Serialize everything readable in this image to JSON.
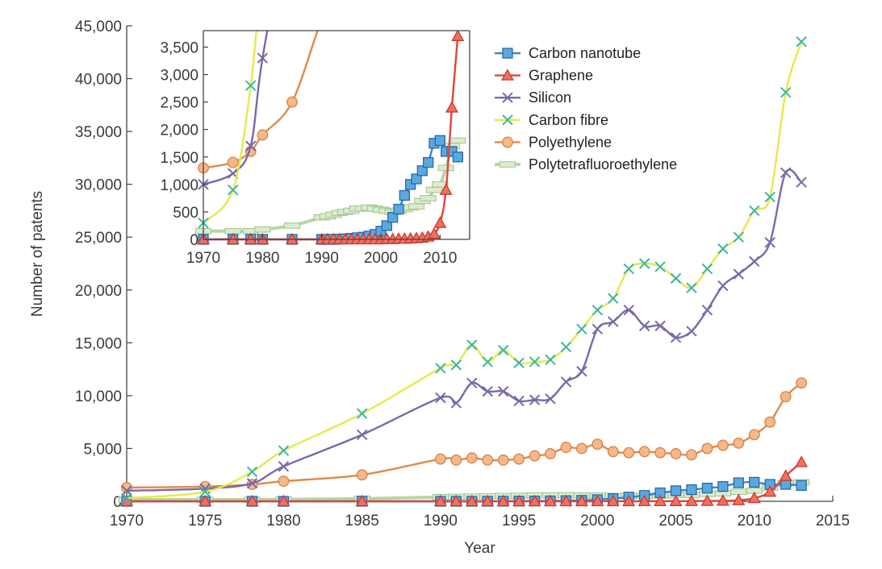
{
  "chart_data": [
    {
      "type": "line",
      "xlabel": "Year",
      "ylabel": "Number of patents",
      "xlim": [
        1970,
        2015
      ],
      "ylim": [
        0,
        45000
      ],
      "xticks": [
        1970,
        1975,
        1980,
        1985,
        1990,
        1995,
        2000,
        2005,
        2010,
        2015
      ],
      "yticks": [
        0,
        5000,
        10000,
        15000,
        20000,
        25000,
        30000,
        35000,
        40000,
        45000
      ],
      "xtick_labels": [
        "1970",
        "1975",
        "1980",
        "1985",
        "1990",
        "1995",
        "2000",
        "2005",
        "2010",
        "2015"
      ],
      "ytick_labels": [
        "0",
        "5,000",
        "10,000",
        "15,000",
        "20,000",
        "25,000",
        "30,000",
        "35,000",
        "40,000",
        "45,000"
      ],
      "legend_position": "top-right",
      "series": [
        {
          "name": "Carbon nanotube",
          "color": "#3d85c6",
          "marker": "square",
          "x": [
            1970,
            1975,
            1978,
            1980,
            1985,
            1990,
            1991,
            1992,
            1993,
            1994,
            1995,
            1996,
            1997,
            1998,
            1999,
            2000,
            2001,
            2002,
            2003,
            2004,
            2005,
            2006,
            2007,
            2008,
            2009,
            2010,
            2011,
            2012,
            2013
          ],
          "y": [
            0,
            0,
            0,
            0,
            0,
            0,
            0,
            0,
            5,
            10,
            20,
            30,
            40,
            60,
            90,
            150,
            250,
            400,
            550,
            800,
            1000,
            1100,
            1250,
            1400,
            1750,
            1800,
            1600,
            1600,
            1500
          ]
        },
        {
          "name": "Graphene",
          "color": "#e0453b",
          "marker": "triangle",
          "x": [
            1970,
            1975,
            1978,
            1980,
            1985,
            1990,
            1991,
            1992,
            1993,
            1994,
            1995,
            1996,
            1997,
            1998,
            1999,
            2000,
            2001,
            2002,
            2003,
            2004,
            2005,
            2006,
            2007,
            2008,
            2009,
            2010,
            2011,
            2012,
            2013
          ],
          "y": [
            0,
            0,
            0,
            0,
            0,
            0,
            0,
            0,
            0,
            0,
            0,
            0,
            0,
            0,
            0,
            0,
            5,
            5,
            10,
            10,
            15,
            20,
            30,
            50,
            100,
            300,
            900,
            2400,
            3700
          ]
        },
        {
          "name": "Silicon",
          "color": "#7b68a8",
          "marker": "x",
          "x": [
            1970,
            1975,
            1978,
            1980,
            1985,
            1990,
            1991,
            1992,
            1993,
            1994,
            1995,
            1996,
            1997,
            1998,
            1999,
            2000,
            2001,
            2002,
            2003,
            2004,
            2005,
            2006,
            2007,
            2008,
            2009,
            2010,
            2011,
            2012,
            2013
          ],
          "y": [
            1000,
            1200,
            1700,
            3300,
            6300,
            9800,
            9300,
            11200,
            10400,
            10400,
            9500,
            9600,
            9700,
            11300,
            12300,
            16300,
            17000,
            18100,
            16600,
            16600,
            15500,
            16100,
            18100,
            20400,
            21500,
            22700,
            24500,
            31100,
            30200
          ]
        },
        {
          "name": "Carbon fibre",
          "color": "#e8e84a",
          "marker_color": "#3ab7a5",
          "marker": "x",
          "x": [
            1970,
            1975,
            1978,
            1980,
            1985,
            1990,
            1991,
            1992,
            1993,
            1994,
            1995,
            1996,
            1997,
            1998,
            1999,
            2000,
            2001,
            2002,
            2003,
            2004,
            2005,
            2006,
            2007,
            2008,
            2009,
            2010,
            2011,
            2012,
            2013
          ],
          "y": [
            300,
            900,
            2800,
            4800,
            8300,
            12600,
            12900,
            14800,
            13200,
            14300,
            13100,
            13200,
            13400,
            14600,
            16300,
            18100,
            19200,
            22000,
            22500,
            22200,
            21100,
            20200,
            22000,
            23900,
            25000,
            27500,
            28800,
            38700,
            43500
          ]
        },
        {
          "name": "Polyethylene",
          "color": "#e08a4a",
          "marker": "circle",
          "x": [
            1970,
            1975,
            1978,
            1980,
            1985,
            1990,
            1991,
            1992,
            1993,
            1994,
            1995,
            1996,
            1997,
            1998,
            1999,
            2000,
            2001,
            2002,
            2003,
            2004,
            2005,
            2006,
            2007,
            2008,
            2009,
            2010,
            2011,
            2012,
            2013
          ],
          "y": [
            1300,
            1400,
            1600,
            1900,
            2500,
            4000,
            3900,
            4100,
            3900,
            3900,
            4000,
            4300,
            4500,
            5100,
            5000,
            5400,
            4700,
            4600,
            4700,
            4600,
            4500,
            4400,
            5000,
            5300,
            5500,
            6300,
            7500,
            9900,
            11200
          ]
        },
        {
          "name": "Polytetrafluoroethylene",
          "color": "#b5d6a5",
          "marker": "dash",
          "x": [
            1970,
            1975,
            1978,
            1980,
            1985,
            1990,
            1991,
            1992,
            1993,
            1994,
            1995,
            1996,
            1997,
            1998,
            1999,
            2000,
            2001,
            2002,
            2003,
            2004,
            2005,
            2006,
            2007,
            2008,
            2009,
            2010,
            2011,
            2012,
            2013
          ],
          "y": [
            150,
            150,
            150,
            180,
            250,
            400,
            420,
            450,
            480,
            500,
            520,
            560,
            560,
            580,
            560,
            540,
            520,
            500,
            520,
            550,
            580,
            600,
            700,
            750,
            900,
            1000,
            1300,
            1700,
            1800
          ]
        }
      ]
    },
    {
      "type": "line",
      "role": "inset",
      "xlim": [
        1970,
        2015
      ],
      "ylim": [
        0,
        3800
      ],
      "xticks": [
        1970,
        1980,
        1990,
        2000,
        2010
      ],
      "yticks": [
        0,
        500,
        1000,
        1500,
        2000,
        2500,
        3000,
        3500
      ],
      "xtick_labels": [
        "1970",
        "1980",
        "1990",
        "2000",
        "2010"
      ],
      "ytick_labels": [
        "0",
        "500",
        "1,000",
        "1,500",
        "2,000",
        "2,500",
        "3,000",
        "3,500"
      ]
    }
  ]
}
